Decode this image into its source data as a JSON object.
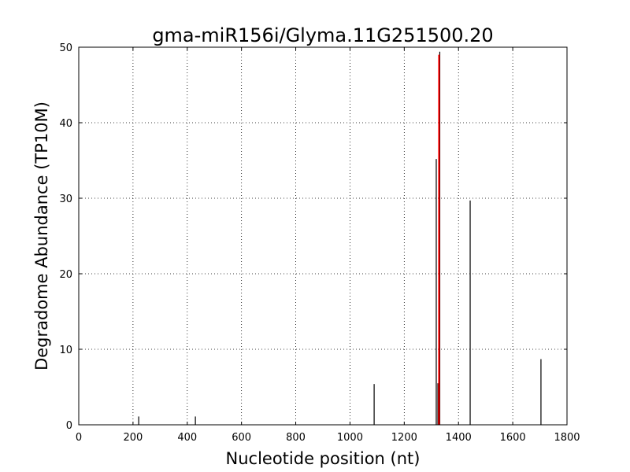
{
  "chart_data": {
    "type": "bar",
    "title": "gma-miR156i/Glyma.11G251500.20",
    "xlabel": "Nucleotide position (nt)",
    "ylabel": "Degradome Abundance (TP10M)",
    "xlim": [
      0,
      1800
    ],
    "ylim": [
      0,
      50
    ],
    "xticks": [
      "0",
      "200",
      "400",
      "600",
      "800",
      "1000",
      "1200",
      "1400",
      "1600",
      "1800"
    ],
    "yticks": [
      "0",
      "10",
      "20",
      "30",
      "40",
      "50"
    ],
    "grid": true,
    "series": [
      {
        "color": "#000000",
        "points": [
          [
            221,
            1.1
          ],
          [
            430,
            1.1
          ],
          [
            1089,
            5.4
          ],
          [
            1318,
            35.2
          ],
          [
            1324,
            5.5
          ],
          [
            1331,
            49.4
          ],
          [
            1443,
            29.7
          ],
          [
            1704,
            8.7
          ]
        ]
      },
      {
        "color": "#ff0000",
        "points": [
          [
            1328,
            49.0
          ]
        ]
      }
    ]
  }
}
